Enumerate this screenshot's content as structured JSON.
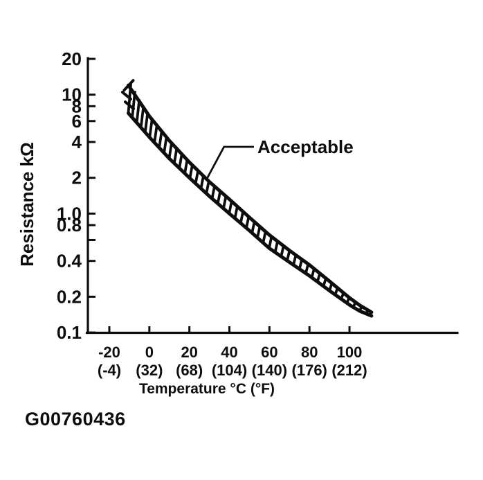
{
  "figure_code": "G00760436",
  "chart_data": {
    "type": "area",
    "title": "",
    "xlabel": "Temperature °C (°F)",
    "ylabel": "Resistance kΩ",
    "y_scale": "log",
    "ylim": [
      0.1,
      20
    ],
    "xlim_c": [
      -20,
      115
    ],
    "grid": false,
    "legend_position": "none",
    "colors": {
      "ink": "#0d0d0d",
      "background": "#ffffff"
    },
    "x_ticks": [
      {
        "c": "-20",
        "f": "(-4)",
        "value_c": -20
      },
      {
        "c": "0",
        "f": "(32)",
        "value_c": 0
      },
      {
        "c": "20",
        "f": "(68)",
        "value_c": 20
      },
      {
        "c": "40",
        "f": "(104)",
        "value_c": 40
      },
      {
        "c": "60",
        "f": "(140)",
        "value_c": 60
      },
      {
        "c": "80",
        "f": "(176)",
        "value_c": 80
      },
      {
        "c": "100",
        "f": "(212)",
        "value_c": 100
      }
    ],
    "y_ticks": [
      {
        "value": 20,
        "label": "20"
      },
      {
        "value": 10,
        "label": "10"
      },
      {
        "value": 8,
        "label": "8"
      },
      {
        "value": 6,
        "label": "6"
      },
      {
        "value": 4,
        "label": "4"
      },
      {
        "value": 2,
        "label": "2"
      },
      {
        "value": 1.0,
        "label": "1.0"
      },
      {
        "value": 0.8,
        "label": "0.8"
      },
      {
        "value": 0.6,
        "label": ""
      },
      {
        "value": 0.4,
        "label": "0.4"
      },
      {
        "value": 0.2,
        "label": "0.2"
      },
      {
        "value": 0.1,
        "label": "0.1"
      }
    ],
    "band": {
      "name": "Acceptable",
      "style": "hatched",
      "temps_c": [
        -10.5,
        0,
        10,
        20,
        30,
        40,
        50,
        60,
        70,
        80,
        90,
        100,
        105,
        111
      ],
      "upper_kohm": [
        12.0,
        6.6,
        4.1,
        2.7,
        1.85,
        1.32,
        0.93,
        0.66,
        0.49,
        0.37,
        0.27,
        0.196,
        0.17,
        0.148
      ],
      "lower_kohm": [
        7.0,
        4.4,
        2.9,
        2.0,
        1.4,
        1.0,
        0.72,
        0.51,
        0.39,
        0.3,
        0.225,
        0.171,
        0.152,
        0.138
      ]
    },
    "annotation": {
      "label": "Acceptable",
      "target_temp_c": 29,
      "target_kohm": 2.0
    }
  }
}
